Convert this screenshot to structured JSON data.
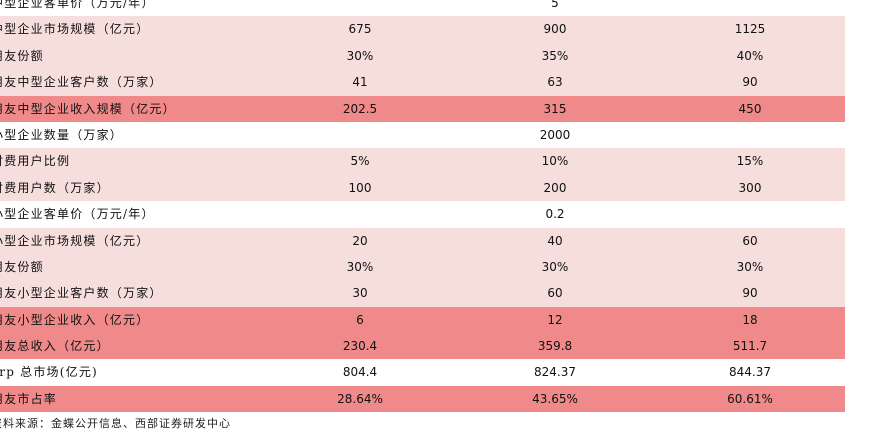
{
  "rows": [
    {
      "label": "中型企业客单价（万元/年）",
      "values": [
        "5"
      ],
      "style": "plain",
      "span": true
    },
    {
      "label": "中型企业市场规模（亿元）",
      "values": [
        "675",
        "900",
        "1125"
      ],
      "style": "light"
    },
    {
      "label": "用友份额",
      "values": [
        "30%",
        "35%",
        "40%"
      ],
      "style": "light"
    },
    {
      "label": "用友中型企业客户数（万家）",
      "values": [
        "41",
        "63",
        "90"
      ],
      "style": "light"
    },
    {
      "label": "用友中型企业收入规模（亿元）",
      "values": [
        "202.5",
        "315",
        "450"
      ],
      "style": "dark"
    },
    {
      "label": "小型企业数量（万家）",
      "values": [
        "2000"
      ],
      "style": "plain",
      "span": true
    },
    {
      "label": "付费用户比例",
      "values": [
        "5%",
        "10%",
        "15%"
      ],
      "style": "light"
    },
    {
      "label": "付费用户数（万家）",
      "values": [
        "100",
        "200",
        "300"
      ],
      "style": "light"
    },
    {
      "label": "小型企业客单价（万元/年）",
      "values": [
        "0.2"
      ],
      "style": "plain",
      "span": true
    },
    {
      "label": "小型企业市场规模（亿元）",
      "values": [
        "20",
        "40",
        "60"
      ],
      "style": "light"
    },
    {
      "label": "用友份额",
      "values": [
        "30%",
        "30%",
        "30%"
      ],
      "style": "light"
    },
    {
      "label": "用友小型企业客户数（万家）",
      "values": [
        "30",
        "60",
        "90"
      ],
      "style": "light"
    },
    {
      "label": "用友小型企业收入（亿元）",
      "values": [
        "6",
        "12",
        "18"
      ],
      "style": "dark"
    },
    {
      "label": "用友总收入（亿元）",
      "values": [
        "230.4",
        "359.8",
        "511.7"
      ],
      "style": "dark"
    },
    {
      "label": "erp 总市场(亿元)",
      "values": [
        "804.4",
        "824.37",
        "844.37"
      ],
      "style": "plain"
    },
    {
      "label": "用友市占率",
      "values": [
        "28.64%",
        "43.65%",
        "60.61%"
      ],
      "style": "dark"
    }
  ],
  "footnote": "资料来源：金蝶公开信息、西部证券研发中心",
  "colors": {
    "light_row": "#f6dedd",
    "dark_row": "#f08a8a",
    "plain_row": "#ffffff"
  }
}
